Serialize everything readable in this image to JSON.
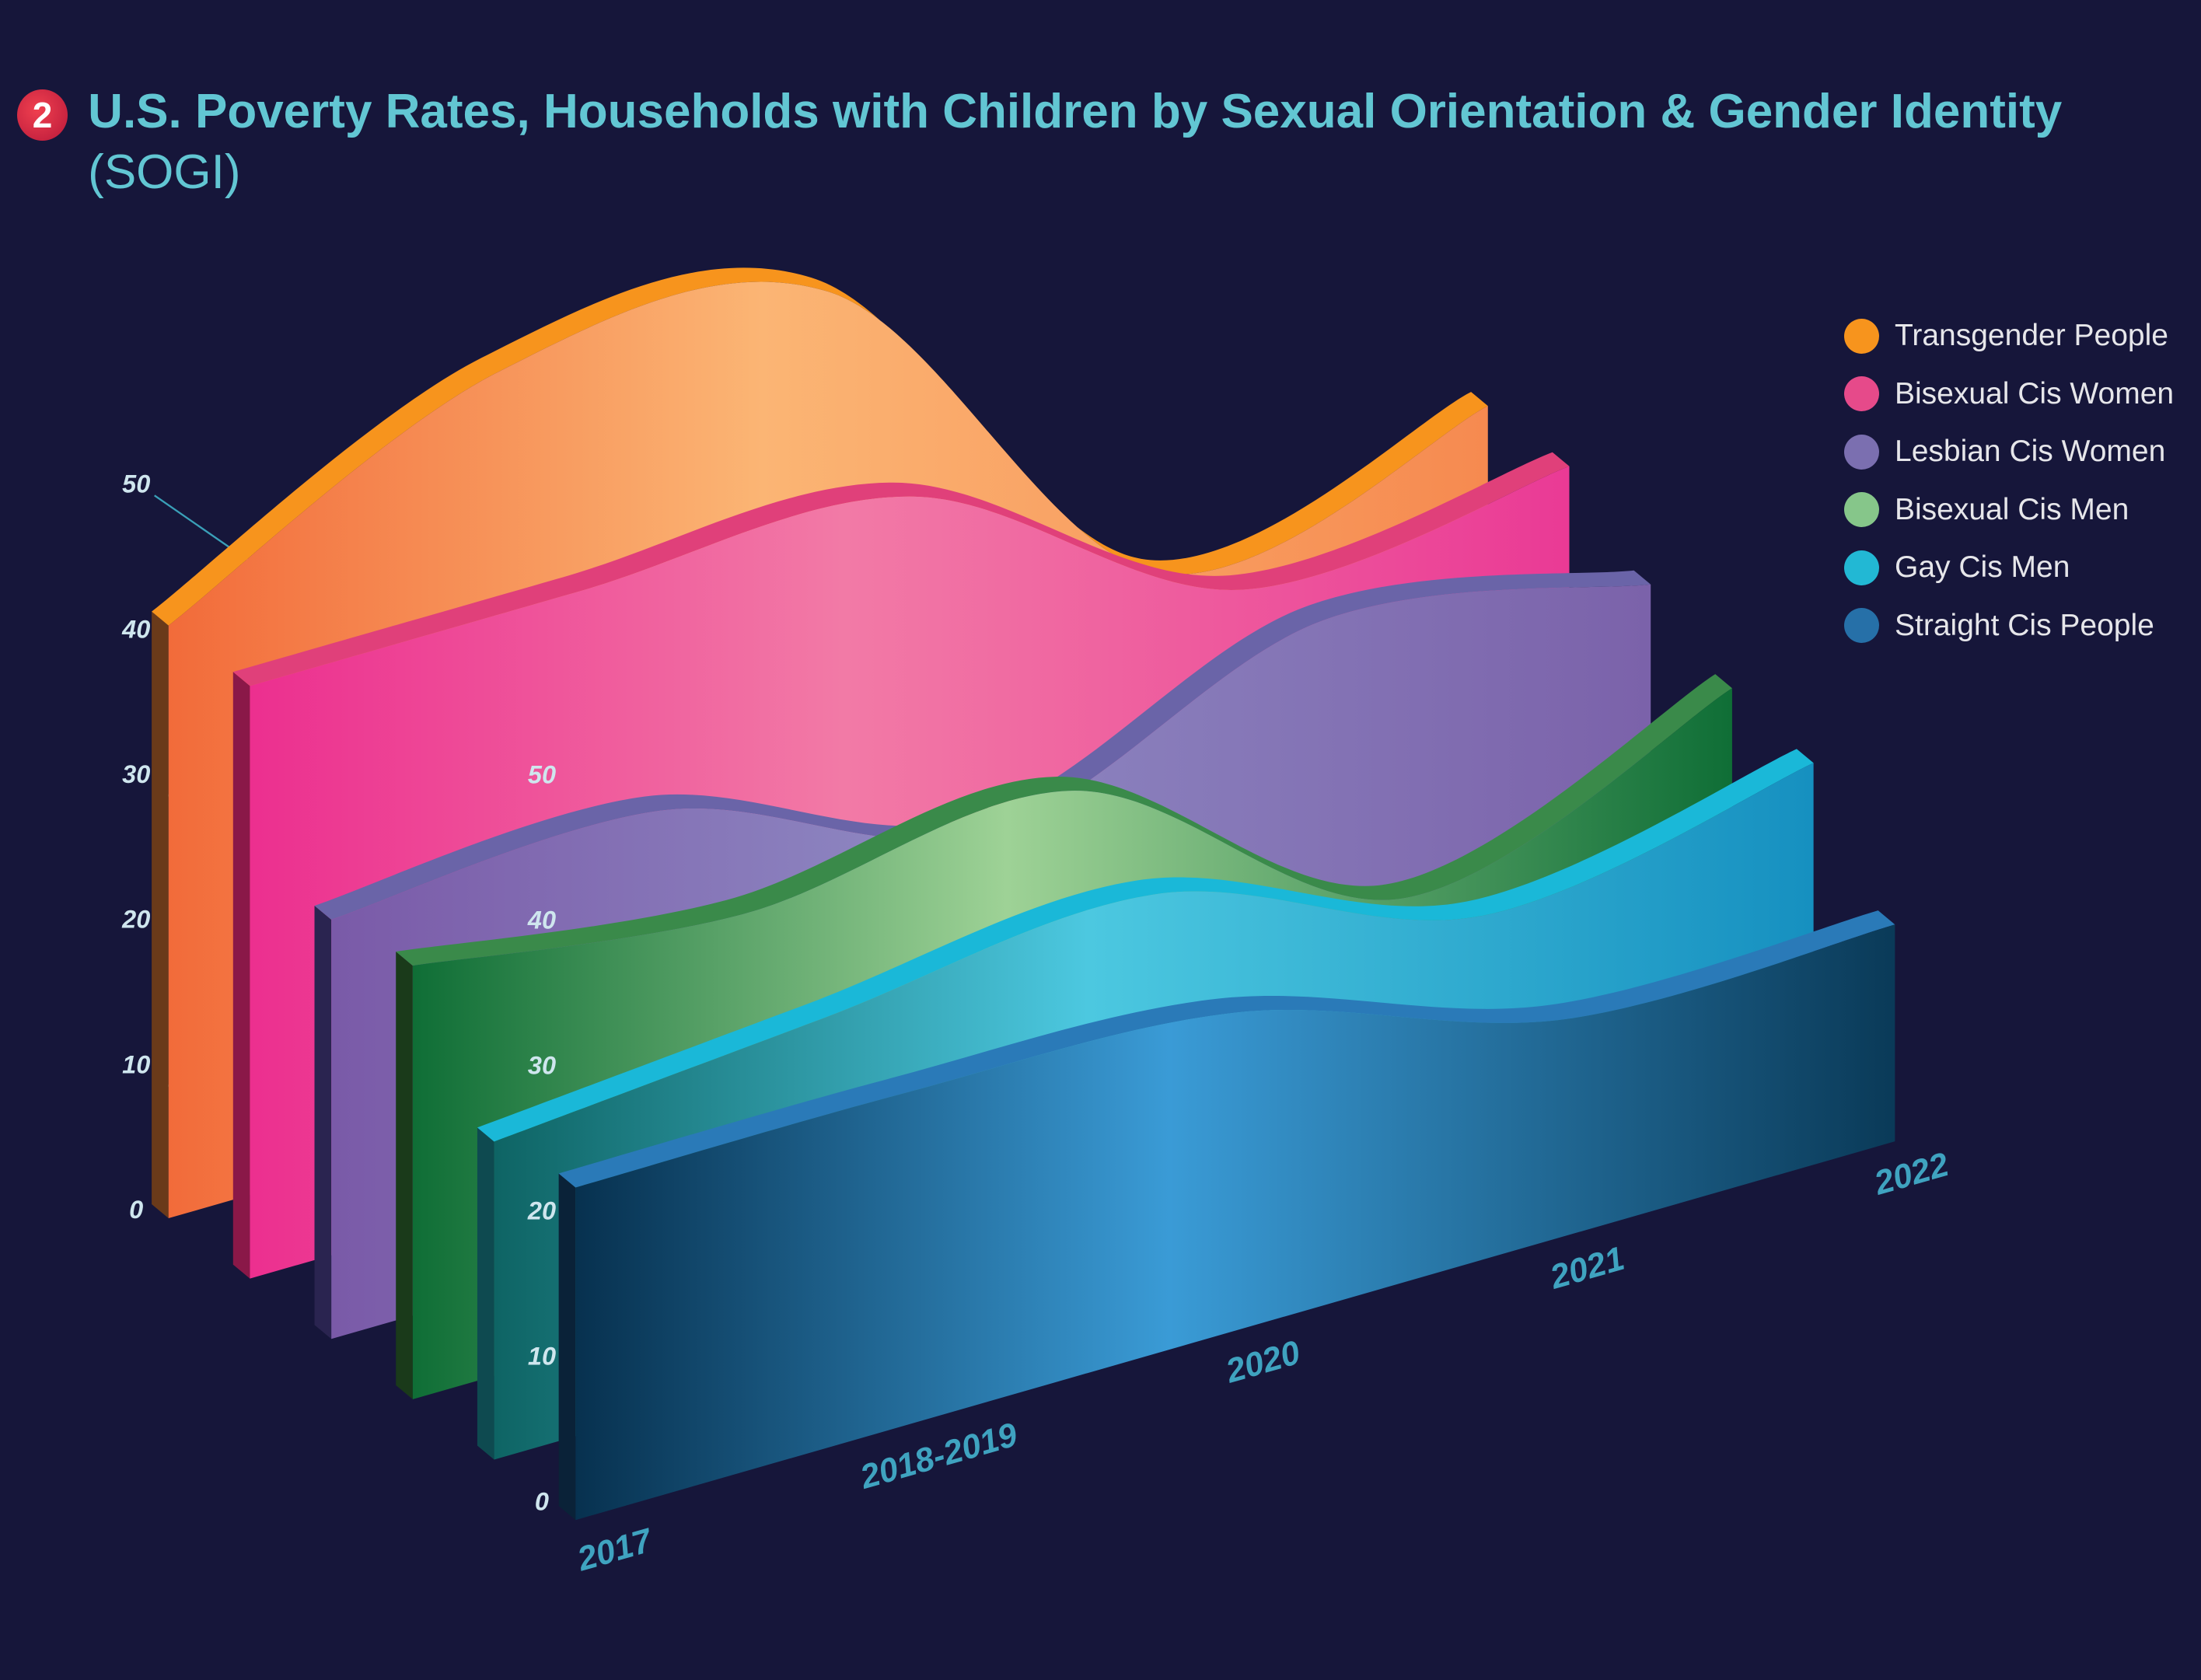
{
  "badge": "2",
  "title_bold": "U.S. Poverty Rates, Households with Children by Sexual Orientation & Gender Identity",
  "title_light": "(SOGI)",
  "chart_data": {
    "type": "area",
    "style": "3d-ribbon",
    "title": "U.S. Poverty Rates, Households with Children by Sexual Orientation & Gender Identity (SOGI)",
    "categories": [
      "2017",
      "2018-2019",
      "2020",
      "2021",
      "2022"
    ],
    "yticks": [
      "0",
      "10",
      "20",
      "30",
      "40",
      "50"
    ],
    "ylim": [
      0,
      55
    ],
    "legend_position": "right",
    "series": [
      {
        "name": "Transgender People",
        "color": "#f7941d",
        "values": [
          41,
          52,
          51,
          25,
          30
        ]
      },
      {
        "name": "Bisexual Cis Women",
        "color": "#e64a8a",
        "values": [
          41,
          41,
          41,
          28,
          30
        ]
      },
      {
        "name": "Lesbian Cis Women",
        "color": "#7b6fb0",
        "values": [
          29,
          30,
          22,
          30,
          26
        ]
      },
      {
        "name": "Bisexual Cis Men",
        "color": "#86c68a",
        "values": [
          30,
          27,
          29,
          15,
          23
        ]
      },
      {
        "name": "Gay Cis Men",
        "color": "#22b8d4",
        "values": [
          22,
          24,
          26,
          18,
          22
        ]
      },
      {
        "name": "Straight Cis People",
        "color": "#2670a8",
        "values": [
          23,
          23,
          22,
          15,
          15
        ]
      }
    ]
  }
}
